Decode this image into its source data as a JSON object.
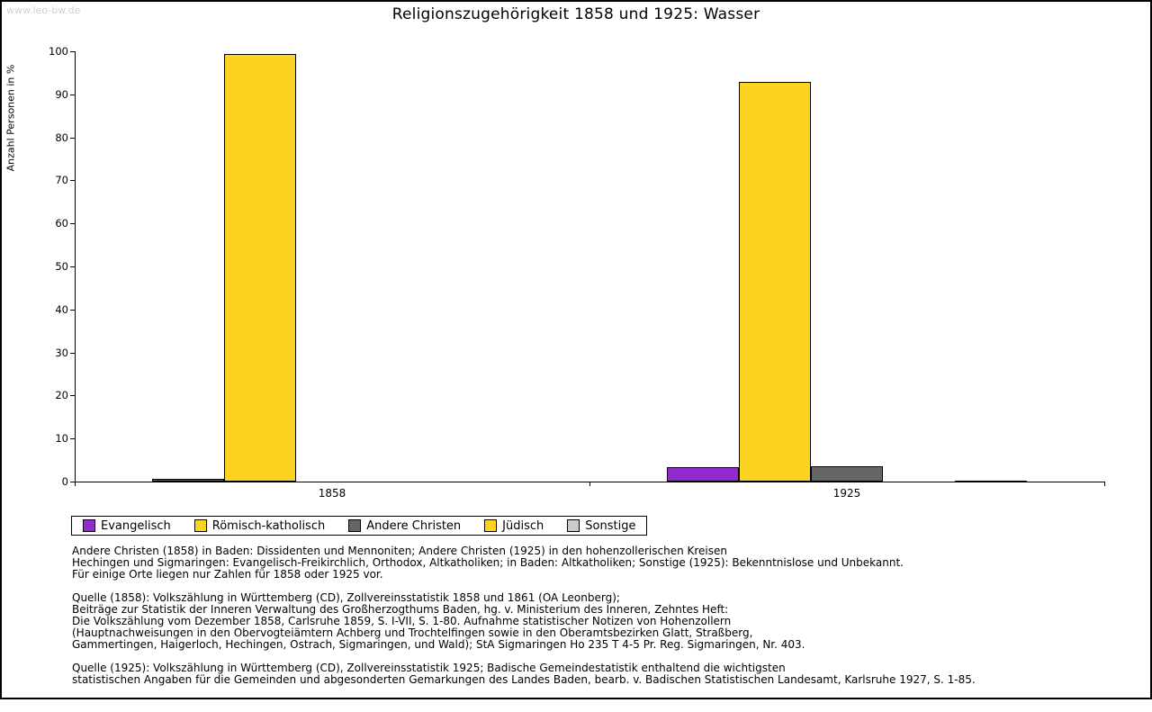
{
  "watermark": "www.leo-bw.de",
  "chart_data": {
    "type": "bar",
    "title": "Religionszugehörigkeit 1858 und 1925: Wasser",
    "ylabel": "Anzahl Personen in %",
    "xlabel": "",
    "ylim": [
      0,
      100
    ],
    "y_tick_step": 10,
    "grid": false,
    "legend_position": "bottom",
    "categories": [
      "1858",
      "1925"
    ],
    "series": [
      {
        "name": "Evangelisch",
        "color": "#9229cc",
        "values": [
          0.7,
          3.3
        ]
      },
      {
        "name": "Römisch-katholisch",
        "color": "#fdd321",
        "values": [
          99.3,
          92.9
        ]
      },
      {
        "name": "Andere Christen",
        "color": "#666666",
        "values": [
          0,
          3.5
        ]
      },
      {
        "name": "Jüdisch",
        "color": "#fdd321",
        "values": [
          0,
          0
        ]
      },
      {
        "name": "Sonstige",
        "color": "#cbcbcb",
        "values": [
          0,
          0.3
        ]
      }
    ]
  },
  "notes": [
    [
      "Andere Christen (1858) in Baden: Dissidenten und Mennoniten; Andere Christen (1925) in den hohenzollerischen Kreisen",
      "Hechingen und Sigmaringen: Evangelisch-Freikirchlich, Orthodox, Altkatholiken; in Baden: Altkatholiken; Sonstige (1925): Bekenntnislose und Unbekannt.",
      "Für einige Orte liegen nur Zahlen für 1858 oder 1925 vor."
    ],
    [
      "Quelle (1858): Volkszählung in Württemberg (CD), Zollvereinsstatistik 1858 und 1861 (OA Leonberg);",
      "Beiträge zur Statistik der Inneren Verwaltung des Großherzogthums Baden, hg. v. Ministerium des Inneren, Zehntes Heft:",
      "Die Volkszählung vom Dezember 1858, Carlsruhe 1859, S. I-VII, S. 1-80. Aufnahme statistischer Notizen von Hohenzollern",
      "(Hauptnachweisungen in den Obervogteiämtern Achberg und Trochtelfingen sowie in den Oberamtsbezirken Glatt, Straßberg,",
      "Gammertingen, Haigerloch, Hechingen, Ostrach, Sigmaringen, und Wald); StA Sigmaringen Ho 235 T 4-5 Pr. Reg. Sigmaringen, Nr. 403."
    ],
    [
      "Quelle (1925): Volkszählung in Württemberg (CD), Zollvereinsstatistik 1925; Badische Gemeindestatistik enthaltend die wichtigsten",
      "statistischen Angaben für die Gemeinden und abgesonderten Gemarkungen des Landes Baden, bearb. v. Badischen Statistischen Landesamt, Karlsruhe 1927, S. 1-85."
    ]
  ]
}
